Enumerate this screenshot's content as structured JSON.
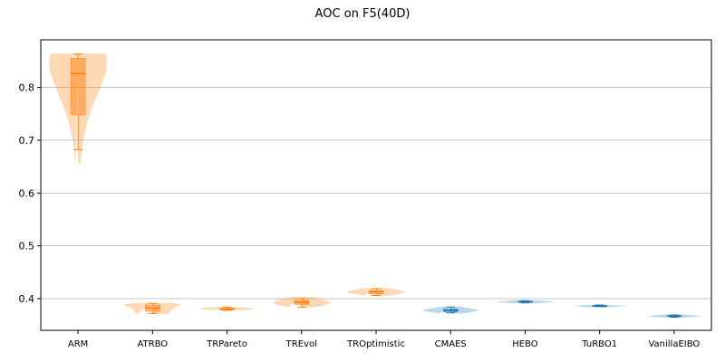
{
  "chart_data": {
    "type": "violin",
    "title": "AOC on F5(40D)",
    "xlabel": "",
    "ylabel": "",
    "ylim": [
      0.34,
      0.89
    ],
    "yticks": [
      0.4,
      0.5,
      0.6,
      0.7,
      0.8
    ],
    "grid": "horizontal",
    "colors": {
      "orange": "#ff7f0e",
      "blue": "#1f77b4"
    },
    "categories": [
      "ARM",
      "ATRBO",
      "TRPareto",
      "TREvol",
      "TROptimistic",
      "CMAES",
      "HEBO",
      "TuRBO1",
      "VanillaEIBO"
    ],
    "series": [
      {
        "category": "ARM",
        "color": "orange",
        "min": 0.682,
        "q1": 0.748,
        "median": 0.826,
        "q3": 0.855,
        "max": 0.863,
        "kde_min": 0.657,
        "kde_max": 0.864,
        "width_profile": [
          [
            0.657,
            0.08
          ],
          [
            0.7,
            0.18
          ],
          [
            0.74,
            0.35
          ],
          [
            0.77,
            0.55
          ],
          [
            0.8,
            0.78
          ],
          [
            0.83,
            0.97
          ],
          [
            0.85,
            1.0
          ],
          [
            0.864,
            0.95
          ]
        ]
      },
      {
        "category": "ATRBO",
        "color": "orange",
        "min": 0.372,
        "q1": 0.376,
        "median": 0.382,
        "q3": 0.388,
        "max": 0.391,
        "kde_min": 0.371,
        "kde_max": 0.392,
        "width_profile": [
          [
            0.371,
            0.55
          ],
          [
            0.376,
            0.62
          ],
          [
            0.381,
            0.7
          ],
          [
            0.385,
            0.85
          ],
          [
            0.389,
            1.0
          ],
          [
            0.392,
            0.6
          ]
        ]
      },
      {
        "category": "TRPareto",
        "color": "orange",
        "min": 0.378,
        "q1": 0.379,
        "median": 0.38,
        "q3": 0.382,
        "max": 0.384,
        "kde_min": 0.378,
        "kde_max": 0.384,
        "width_profile": [
          [
            0.378,
            0.45
          ],
          [
            0.38,
            0.9
          ],
          [
            0.382,
            0.9
          ],
          [
            0.384,
            0.4
          ]
        ]
      },
      {
        "category": "TREvol",
        "color": "orange",
        "min": 0.384,
        "q1": 0.389,
        "median": 0.393,
        "q3": 0.397,
        "max": 0.4,
        "kde_min": 0.384,
        "kde_max": 0.403,
        "width_profile": [
          [
            0.384,
            0.45
          ],
          [
            0.388,
            0.85
          ],
          [
            0.392,
            1.0
          ],
          [
            0.397,
            0.85
          ],
          [
            0.403,
            0.4
          ]
        ]
      },
      {
        "category": "TROptimistic",
        "color": "orange",
        "min": 0.406,
        "q1": 0.409,
        "median": 0.413,
        "q3": 0.415,
        "max": 0.419,
        "kde_min": 0.406,
        "kde_max": 0.42,
        "width_profile": [
          [
            0.406,
            0.45
          ],
          [
            0.41,
            0.9
          ],
          [
            0.413,
            1.0
          ],
          [
            0.416,
            0.85
          ],
          [
            0.42,
            0.4
          ]
        ]
      },
      {
        "category": "CMAES",
        "color": "blue",
        "min": 0.373,
        "q1": 0.375,
        "median": 0.378,
        "q3": 0.38,
        "max": 0.384,
        "kde_min": 0.372,
        "kde_max": 0.385,
        "width_profile": [
          [
            0.372,
            0.4
          ],
          [
            0.375,
            0.75
          ],
          [
            0.378,
            1.0
          ],
          [
            0.381,
            0.75
          ],
          [
            0.385,
            0.3
          ]
        ]
      },
      {
        "category": "HEBO",
        "color": "blue",
        "min": 0.392,
        "q1": 0.393,
        "median": 0.394,
        "q3": 0.395,
        "max": 0.396,
        "kde_min": 0.391,
        "kde_max": 0.397,
        "width_profile": [
          [
            0.391,
            0.35
          ],
          [
            0.393,
            0.85
          ],
          [
            0.394,
            1.0
          ],
          [
            0.395,
            0.85
          ],
          [
            0.397,
            0.35
          ]
        ]
      },
      {
        "category": "TuRBO1",
        "color": "blue",
        "min": 0.385,
        "q1": 0.385,
        "median": 0.386,
        "q3": 0.387,
        "max": 0.388,
        "kde_min": 0.384,
        "kde_max": 0.388,
        "width_profile": [
          [
            0.384,
            0.35
          ],
          [
            0.386,
            1.0
          ],
          [
            0.388,
            0.35
          ]
        ]
      },
      {
        "category": "VanillaEIBO",
        "color": "blue",
        "min": 0.365,
        "q1": 0.366,
        "median": 0.367,
        "q3": 0.368,
        "max": 0.369,
        "kde_min": 0.364,
        "kde_max": 0.37,
        "width_profile": [
          [
            0.364,
            0.35
          ],
          [
            0.367,
            1.0
          ],
          [
            0.37,
            0.35
          ]
        ]
      }
    ]
  }
}
